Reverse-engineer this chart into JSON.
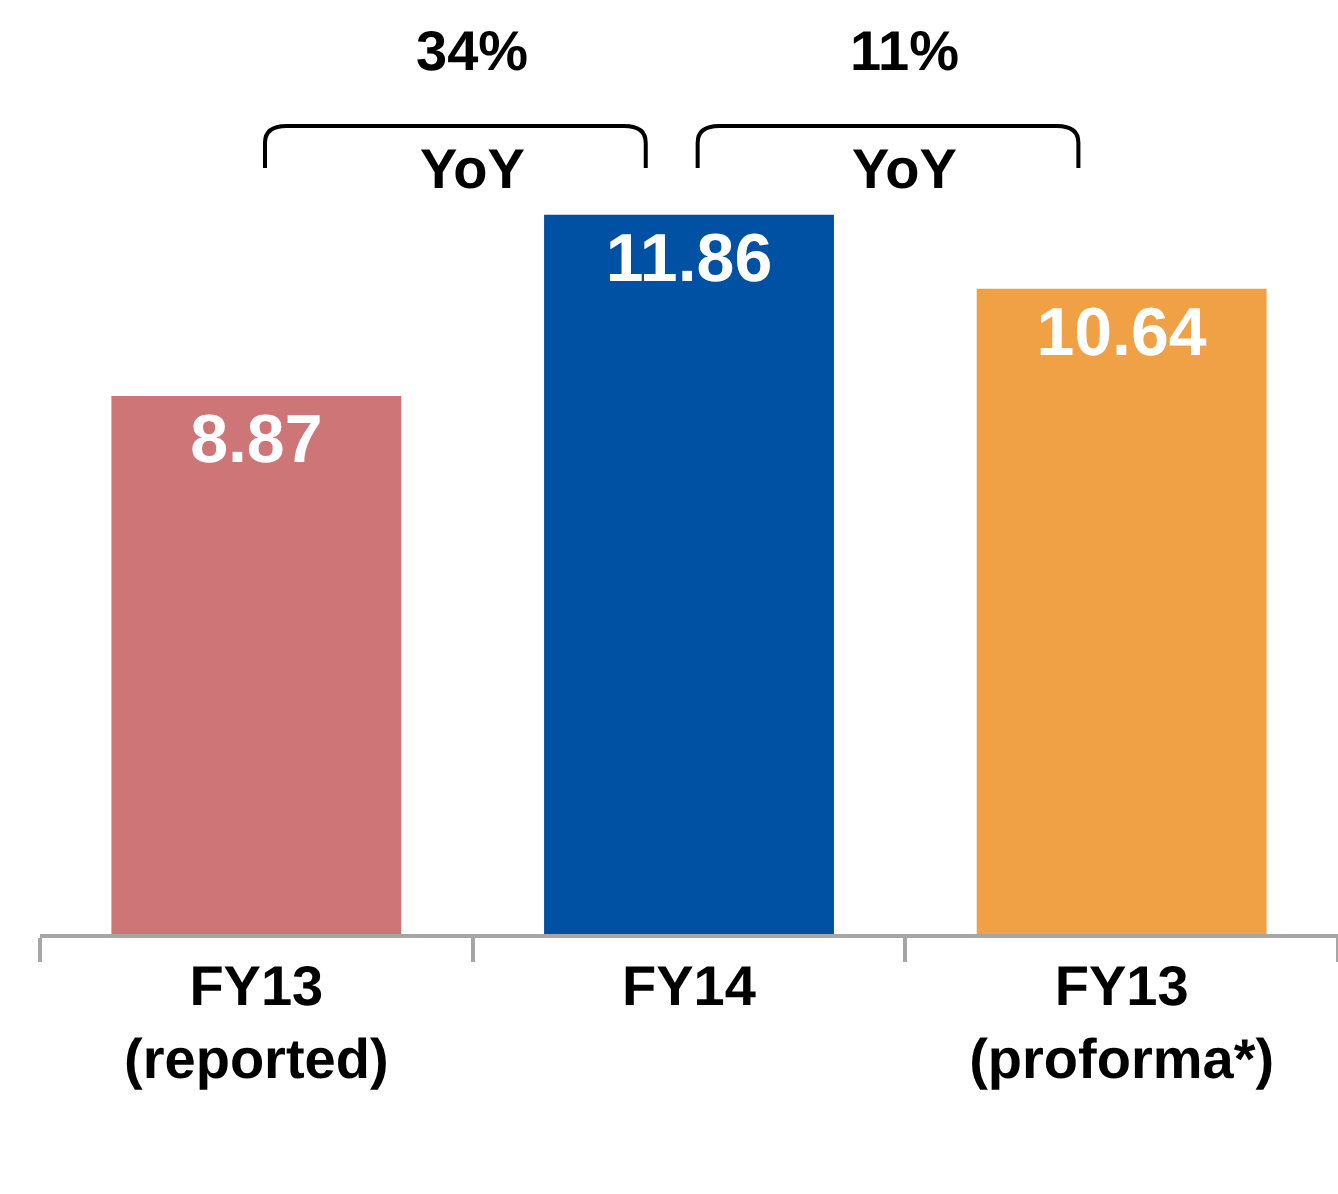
{
  "chart_data": {
    "type": "bar",
    "categories": [
      "FY13\n(reported)",
      "FY14",
      "FY13\n(proforma*)"
    ],
    "values": [
      8.87,
      11.86,
      10.64
    ],
    "colors": [
      "#cd7577",
      "#0050a4",
      "#f0a045"
    ],
    "ylim": [
      0,
      15.4
    ],
    "data_labels": true,
    "tick_labels": "x",
    "annotations": [
      "34%",
      "YoY",
      "11%",
      "YoY"
    ]
  }
}
